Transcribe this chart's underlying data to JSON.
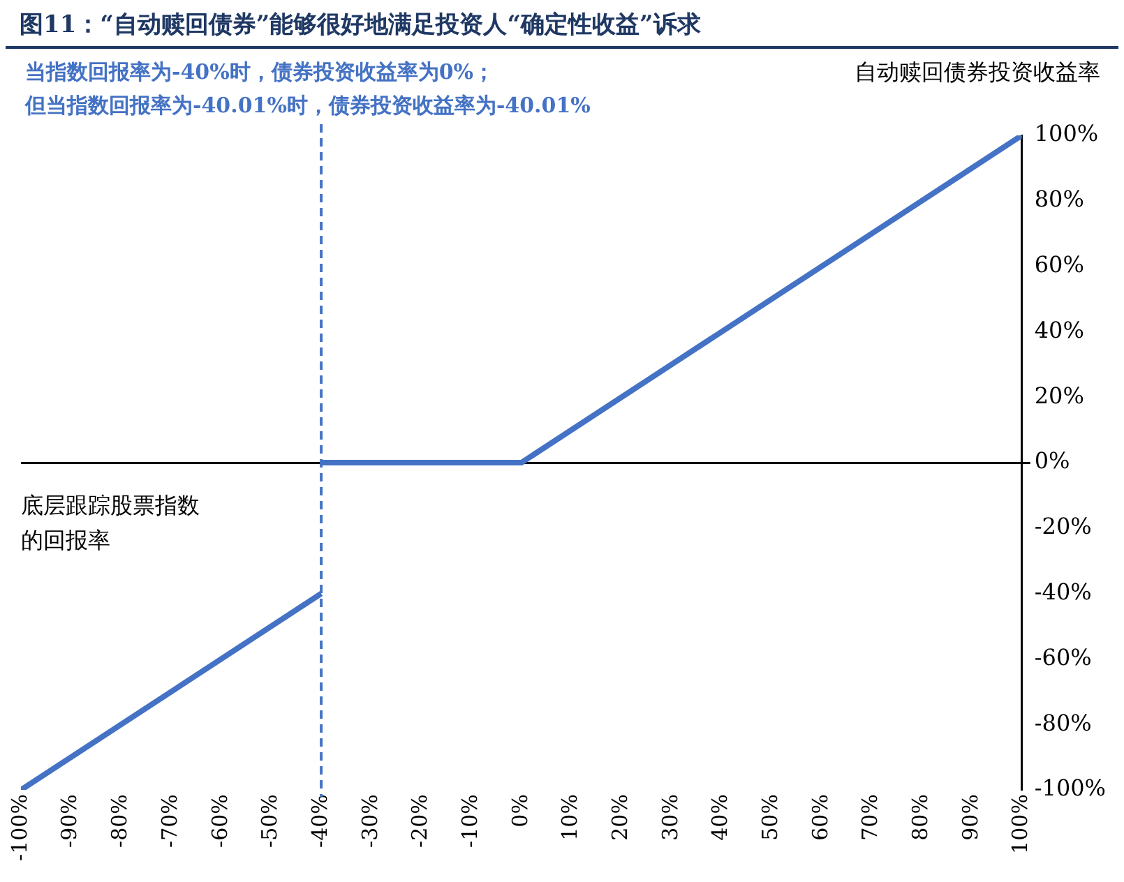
{
  "chart_data": {
    "type": "line",
    "title": "图11：“自动赎回债券”能够很好地满足投资人“确定性收益”诉求",
    "xlabel": "底层跟踪股票指数的回报率",
    "ylabel": "自动赎回债券投资收益率",
    "annotations": [
      "当指数回报率为-40%时，债券投资收益率为0%；",
      "但当指数回报率为-40.01%时，债券投资收益率为-40.01%"
    ],
    "series": [
      {
        "color": "#4472c4",
        "x": [
          -100,
          -40
        ],
        "values": [
          -100,
          -40
        ]
      },
      {
        "color": "#4472c4",
        "x": [
          -40,
          0,
          100
        ],
        "values": [
          0,
          0,
          100
        ]
      }
    ],
    "xlim": [
      -100,
      100
    ],
    "xticks": [
      {
        "value": -100,
        "label": "-100%"
      },
      {
        "value": -90,
        "label": "-90%"
      },
      {
        "value": -80,
        "label": "-80%"
      },
      {
        "value": -70,
        "label": "-70%"
      },
      {
        "value": -60,
        "label": "-60%"
      },
      {
        "value": -50,
        "label": "-50%"
      },
      {
        "value": -40,
        "label": "-40%"
      },
      {
        "value": -30,
        "label": "-30%"
      },
      {
        "value": -20,
        "label": "-20%"
      },
      {
        "value": -10,
        "label": "-10%"
      },
      {
        "value": 0,
        "label": "0%"
      },
      {
        "value": 10,
        "label": "10%"
      },
      {
        "value": 20,
        "label": "20%"
      },
      {
        "value": 30,
        "label": "30%"
      },
      {
        "value": 40,
        "label": "40%"
      },
      {
        "value": 50,
        "label": "50%"
      },
      {
        "value": 60,
        "label": "60%"
      },
      {
        "value": 70,
        "label": "70%"
      },
      {
        "value": 80,
        "label": "80%"
      },
      {
        "value": 90,
        "label": "90%"
      },
      {
        "value": 100,
        "label": "100%"
      }
    ],
    "ylim": [
      -100,
      100
    ],
    "yticks": [
      {
        "value": -100,
        "label": "-100%"
      },
      {
        "value": -80,
        "label": "-80%"
      },
      {
        "value": -60,
        "label": "-60%"
      },
      {
        "value": -40,
        "label": "-40%"
      },
      {
        "value": -20,
        "label": "-20%"
      },
      {
        "value": 0,
        "label": "0%"
      },
      {
        "value": 20,
        "label": "20%"
      },
      {
        "value": 40,
        "label": "40%"
      },
      {
        "value": 60,
        "label": "60%"
      },
      {
        "value": 80,
        "label": "80%"
      },
      {
        "value": 100,
        "label": "100%"
      }
    ],
    "ref_lines": [
      {
        "axis": "x",
        "value": -40,
        "color": "#4472c4",
        "line_style": "dashed"
      }
    ],
    "grid": false,
    "legend": false,
    "marker": "none",
    "line_style": "solid"
  }
}
